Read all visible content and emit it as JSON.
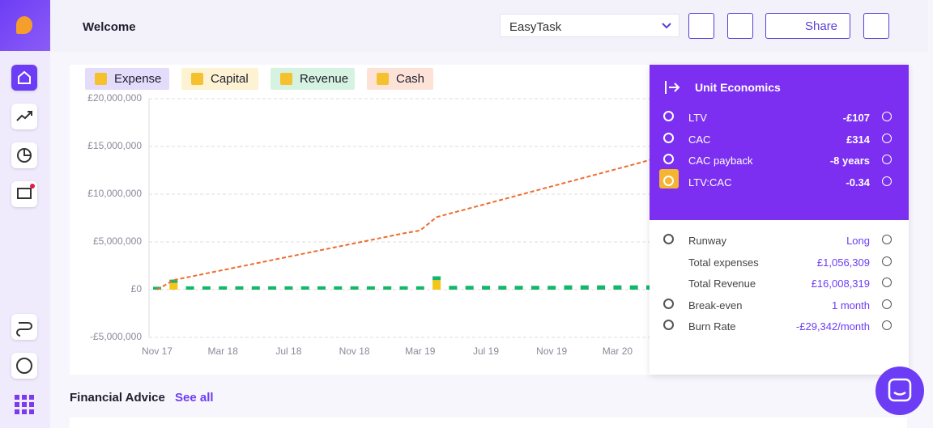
{
  "header": {
    "title": "Welcome",
    "project": "EasyTask",
    "share": "Share"
  },
  "chart_data": {
    "type": "bar",
    "categories": [
      "Nov 17",
      null,
      null,
      null,
      "Mar 18",
      null,
      null,
      null,
      "Jul 18",
      null,
      null,
      null,
      "Nov 18",
      null,
      null,
      null,
      "Mar 19",
      null,
      null,
      null,
      "Jul 19",
      null,
      null,
      null,
      "Nov 19",
      null,
      null,
      null,
      "Mar 20",
      null,
      null
    ],
    "series": [
      {
        "name": "Expense",
        "color": "#ddd6fe",
        "values": [
          0,
          0,
          0,
          0,
          0,
          0,
          0,
          0,
          0,
          0,
          0,
          0,
          0,
          0,
          0,
          0,
          0,
          0,
          0,
          0,
          0,
          0,
          0,
          0,
          0,
          0,
          0,
          0,
          0,
          0,
          0
        ]
      },
      {
        "name": "Capital",
        "color": "#f5c518",
        "values": [
          0,
          700000,
          0,
          0,
          0,
          0,
          0,
          0,
          0,
          0,
          0,
          0,
          0,
          0,
          0,
          0,
          0,
          1000000,
          0,
          0,
          0,
          0,
          0,
          0,
          0,
          0,
          0,
          0,
          0,
          0,
          0
        ]
      },
      {
        "name": "Revenue",
        "color": "#12b76a",
        "values": [
          300000,
          350000,
          350000,
          350000,
          350000,
          350000,
          350000,
          350000,
          350000,
          350000,
          350000,
          350000,
          350000,
          350000,
          350000,
          350000,
          350000,
          400000,
          400000,
          400000,
          400000,
          400000,
          400000,
          400000,
          400000,
          450000,
          450000,
          450000,
          450000,
          450000,
          450000
        ]
      },
      {
        "name": "Cash",
        "color": "#ef6c2f",
        "type": "line",
        "values": [
          0,
          1000000,
          1350000,
          1700000,
          2050000,
          2400000,
          2750000,
          3100000,
          3450000,
          3800000,
          4150000,
          4500000,
          4850000,
          5200000,
          5550000,
          5900000,
          6200000,
          7600000,
          8060000,
          8520000,
          8980000,
          9440000,
          9900000,
          10360000,
          10820000,
          11280000,
          11740000,
          12200000,
          12660000,
          13120000,
          13600000
        ]
      }
    ],
    "legend_bg": [
      "#e4dcfb",
      "#fdf3d3",
      "#d6f2e0",
      "#fde3d7"
    ],
    "ylim": [
      -5000000,
      20000000
    ],
    "yticks": [
      {
        "value": -5000000,
        "label": "-£5,000,000"
      },
      {
        "value": 0,
        "label": "£0"
      },
      {
        "value": 5000000,
        "label": "£5,000,000"
      },
      {
        "value": 10000000,
        "label": "£10,000,000"
      },
      {
        "value": 15000000,
        "label": "£15,000,000"
      },
      {
        "value": 20000000,
        "label": "£20,000,000"
      }
    ],
    "grid": true
  },
  "unit_economics": {
    "title": "Unit Economics",
    "metrics": [
      {
        "label": "LTV",
        "value": "-£107"
      },
      {
        "label": "CAC",
        "value": "£314"
      },
      {
        "label": "CAC payback",
        "value": "-8 years"
      },
      {
        "label": "LTV:CAC",
        "value": "-0.34"
      }
    ],
    "details": [
      {
        "label": "Runway",
        "value": "Long"
      },
      {
        "label": "Total expenses",
        "value": "£1,056,309"
      },
      {
        "label": "Total Revenue",
        "value": "£16,008,319"
      },
      {
        "label": "Break-even",
        "value": "1 month"
      },
      {
        "label": "Burn Rate",
        "value": "-£29,342/month"
      }
    ]
  },
  "advice": {
    "title": "Financial Advice",
    "link": "See all"
  }
}
